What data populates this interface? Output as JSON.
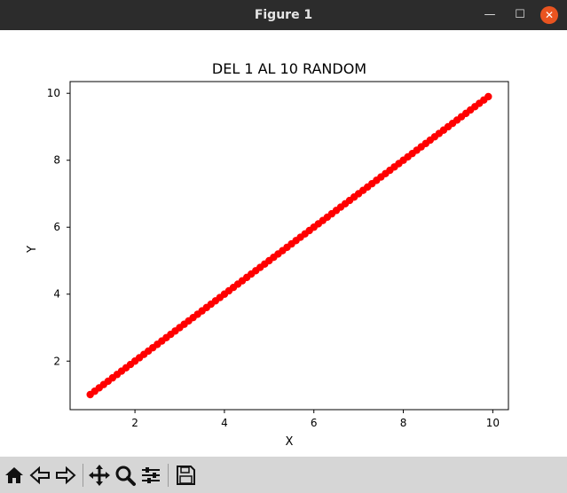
{
  "window": {
    "title": "Figure 1"
  },
  "toolbar": {
    "buttons": [
      "home-icon",
      "back-icon",
      "forward-icon",
      "pan-icon",
      "zoom-icon",
      "configure-subplots-icon",
      "save-icon"
    ]
  },
  "colors": {
    "series": "#ff0000",
    "titlebar": "#2c2c2c",
    "close": "#e95420",
    "toolbar": "#d6d6d6"
  },
  "chart_data": {
    "type": "scatter",
    "title": "DEL 1 AL 10 RANDOM",
    "xlabel": "X",
    "ylabel": "Y",
    "xlim": [
      0.55,
      10.35
    ],
    "ylim": [
      0.55,
      10.35
    ],
    "xticks": [
      2,
      4,
      6,
      8,
      10
    ],
    "yticks": [
      2,
      4,
      6,
      8,
      10
    ],
    "grid": false,
    "line": true,
    "series": [
      {
        "x_start": 1.0,
        "x_end": 9.9,
        "x_step": 0.1,
        "color": "#ff0000",
        "marker": "circle"
      }
    ]
  }
}
